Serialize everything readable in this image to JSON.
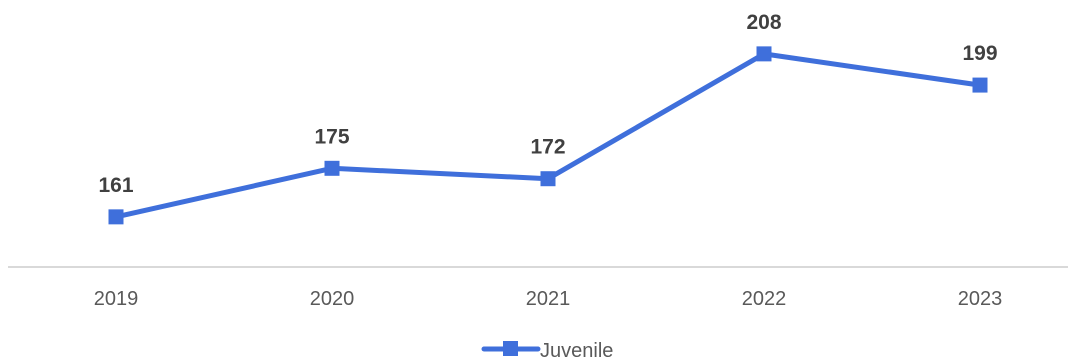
{
  "chart_data": {
    "type": "line",
    "categories": [
      "2019",
      "2020",
      "2021",
      "2022",
      "2023"
    ],
    "series": [
      {
        "name": "Juvenile",
        "values": [
          161,
          175,
          172,
          208,
          199
        ],
        "color": "#3F6FDB",
        "marker": "square"
      }
    ],
    "ylim": [
      150,
      212
    ],
    "grid": false,
    "legend": {
      "position": "bottom"
    },
    "axis_color": "#D9D9D9"
  }
}
